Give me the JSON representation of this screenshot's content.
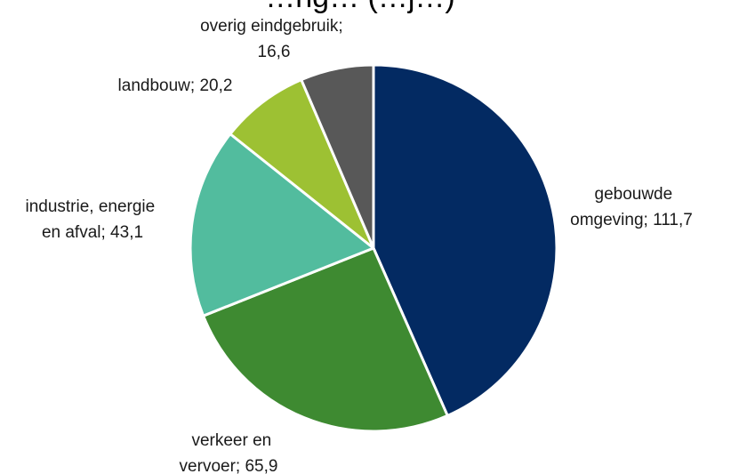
{
  "chart_data": {
    "type": "pie",
    "title": "…ng… (…j…)",
    "slices": [
      {
        "label_lines": [
          "gebouwde",
          "omgeving; 111,7"
        ],
        "value": 111.7,
        "color": "#032a62"
      },
      {
        "label_lines": [
          "verkeer en",
          "vervoer; 65,9"
        ],
        "value": 65.9,
        "color": "#3e8a31"
      },
      {
        "label_lines": [
          "industrie, energie",
          "en afval; 43,1"
        ],
        "value": 43.1,
        "color": "#52bc9e"
      },
      {
        "label_lines": [
          "landbouw; 20,2"
        ],
        "value": 20.2,
        "color": "#9dc133"
      },
      {
        "label_lines": [
          "overig eindgebruik;",
          "16,6"
        ],
        "value": 16.6,
        "color": "#585858"
      }
    ]
  }
}
